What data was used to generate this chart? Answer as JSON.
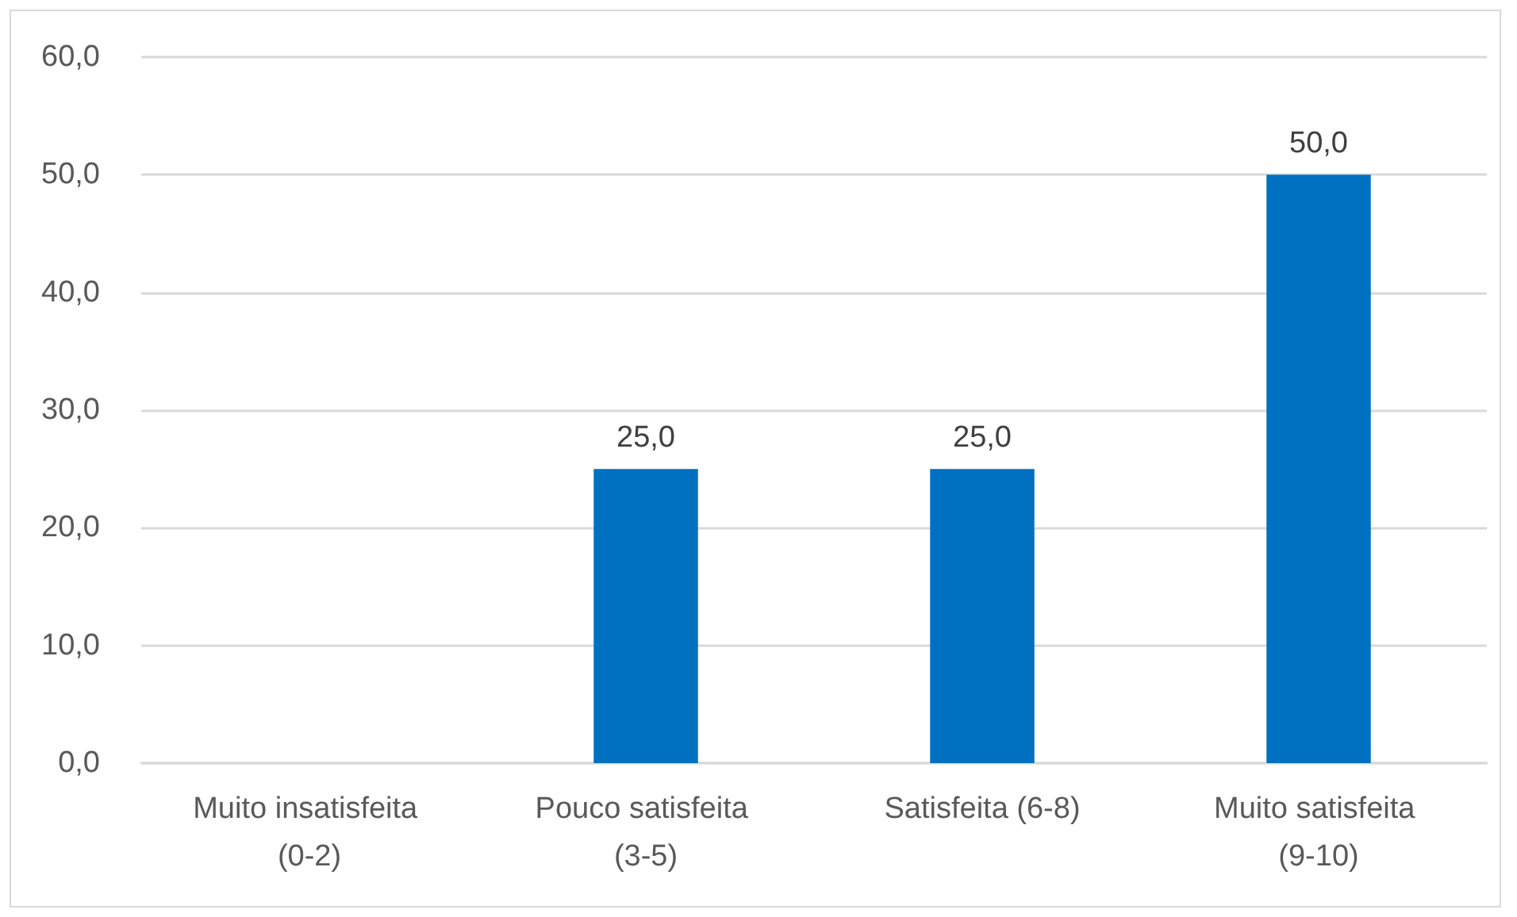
{
  "chart_data": {
    "type": "bar",
    "categories": [
      "Muito insatisfeita (0-2)",
      "Pouco satisfeita (3-5)",
      "Satisfeita (6-8)",
      "Muito satisfeita (9-10)"
    ],
    "values": [
      0,
      25,
      25,
      50
    ],
    "color": "#0070c0",
    "value_labels": [
      null,
      "25,0",
      "25,0",
      "50,0"
    ],
    "ylim": [
      0,
      60
    ],
    "yticks": [
      {
        "value": 0,
        "label": "0,0"
      },
      {
        "value": 10,
        "label": "10,0"
      },
      {
        "value": 20,
        "label": "20,0"
      },
      {
        "value": 30,
        "label": "30,0"
      },
      {
        "value": 40,
        "label": "40,0"
      },
      {
        "value": 50,
        "label": "50,0"
      },
      {
        "value": 60,
        "label": "60,0"
      }
    ],
    "grid": "y"
  }
}
